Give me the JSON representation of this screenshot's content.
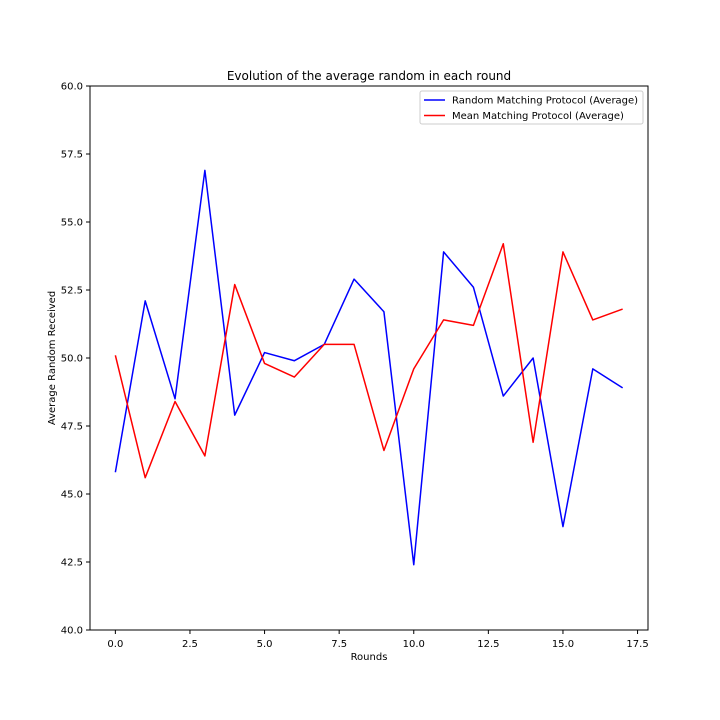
{
  "chart_data": {
    "type": "line",
    "title": "Evolution of the average random in each round",
    "xlabel": "Rounds",
    "ylabel": "Average Random Received",
    "xlim": [
      -0.85,
      17.85
    ],
    "ylim": [
      40.0,
      60.0
    ],
    "x_ticks": [
      0.0,
      2.5,
      5.0,
      7.5,
      10.0,
      12.5,
      15.0,
      17.5
    ],
    "x_tick_labels": [
      "0.0",
      "2.5",
      "5.0",
      "7.5",
      "10.0",
      "12.5",
      "15.0",
      "17.5"
    ],
    "y_ticks": [
      40.0,
      42.5,
      45.0,
      47.5,
      50.0,
      52.5,
      55.0,
      57.5,
      60.0
    ],
    "y_tick_labels": [
      "40.0",
      "42.5",
      "45.0",
      "47.5",
      "50.0",
      "52.5",
      "55.0",
      "57.5",
      "60.0"
    ],
    "grid": false,
    "legend_position": "top-right",
    "x": [
      0,
      1,
      2,
      3,
      4,
      5,
      6,
      7,
      8,
      9,
      10,
      11,
      12,
      13,
      14,
      15,
      16,
      17
    ],
    "series": [
      {
        "name": "Random Matching Protocol (Average)",
        "color": "#0000ff",
        "values": [
          45.8,
          52.1,
          48.5,
          56.9,
          47.9,
          50.2,
          49.9,
          50.5,
          52.9,
          51.7,
          42.4,
          53.9,
          52.6,
          48.6,
          50.0,
          43.8,
          49.6,
          48.9
        ]
      },
      {
        "name": "Mean Matching Protocol (Average)",
        "color": "#ff0000",
        "values": [
          50.1,
          45.6,
          48.4,
          46.4,
          52.7,
          49.8,
          49.3,
          50.5,
          50.5,
          46.6,
          49.6,
          51.4,
          51.2,
          54.2,
          46.9,
          53.9,
          51.4,
          51.8
        ]
      }
    ]
  }
}
